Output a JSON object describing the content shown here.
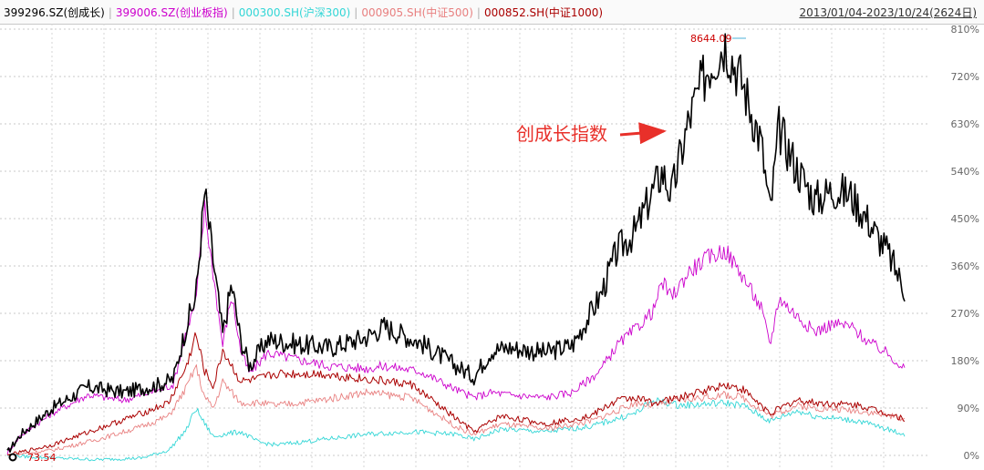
{
  "legend": [
    {
      "label": "399296.SZ(创成长)",
      "color": "#000000"
    },
    {
      "label": "399006.SZ(创业板指)",
      "color": "#cc00cc"
    },
    {
      "label": "000300.SH(沪深300)",
      "color": "#33d6d6"
    },
    {
      "label": "000905.SH(中证500)",
      "color": "#e88080"
    },
    {
      "label": "000852.SH(中证1000)",
      "color": "#aa0000"
    }
  ],
  "date_range": "2013/01/04-2023/10/24(2624日)",
  "chart_data": {
    "type": "line",
    "title": "",
    "xlabel": "",
    "ylabel": "",
    "y_unit": "%",
    "ylim": [
      0,
      810
    ],
    "y_ticks": [
      "810%",
      "720%",
      "630%",
      "540%",
      "450%",
      "360%",
      "270%",
      "180%",
      "90%",
      "0%"
    ],
    "x_range": [
      "2013/01/04",
      "2023/10/24"
    ],
    "grid": true,
    "annotations": [
      {
        "text": "创成长指数",
        "color": "#e8302a",
        "points_to": "399296.SZ(创成长)"
      },
      {
        "text": "8644.09",
        "marks": "max of 399296.SZ(创成长)",
        "color": "#cc0000"
      },
      {
        "text": "73.54",
        "marks": "min of 399296.SZ(创成长)",
        "color": "#cc0000"
      }
    ],
    "series": [
      {
        "name": "399296.SZ(创成长)",
        "color": "#000000",
        "width": 1.6,
        "x": [
          0,
          0.015,
          0.05,
          0.09,
          0.13,
          0.17,
          0.185,
          0.2,
          0.21,
          0.22,
          0.228,
          0.24,
          0.25,
          0.26,
          0.27,
          0.29,
          0.33,
          0.36,
          0.4,
          0.42,
          0.46,
          0.5,
          0.52,
          0.54,
          0.56,
          0.6,
          0.63,
          0.66,
          0.68,
          0.7,
          0.72,
          0.73,
          0.74,
          0.76,
          0.78,
          0.8,
          0.82,
          0.84,
          0.85,
          0.86,
          0.88,
          0.9,
          0.92,
          0.94,
          0.96,
          0.97,
          0.98,
          1.0
        ],
        "y": [
          5,
          40,
          90,
          130,
          120,
          135,
          145,
          250,
          300,
          500,
          390,
          230,
          325,
          220,
          170,
          220,
          210,
          205,
          225,
          245,
          215,
          170,
          150,
          200,
          205,
          195,
          210,
          300,
          390,
          425,
          505,
          540,
          495,
          640,
          735,
          785,
          705,
          595,
          460,
          620,
          545,
          485,
          505,
          495,
          445,
          415,
          390,
          315
        ]
      },
      {
        "name": "399006.SZ(创业板指)",
        "color": "#cc00cc",
        "width": 0.9,
        "x": [
          0,
          0.015,
          0.05,
          0.09,
          0.13,
          0.17,
          0.185,
          0.2,
          0.21,
          0.22,
          0.228,
          0.24,
          0.25,
          0.26,
          0.27,
          0.29,
          0.33,
          0.36,
          0.4,
          0.42,
          0.46,
          0.5,
          0.52,
          0.54,
          0.56,
          0.6,
          0.63,
          0.66,
          0.68,
          0.7,
          0.72,
          0.73,
          0.74,
          0.76,
          0.78,
          0.8,
          0.82,
          0.84,
          0.85,
          0.86,
          0.88,
          0.9,
          0.92,
          0.94,
          0.96,
          0.97,
          0.98,
          1.0
        ],
        "y": [
          5,
          38,
          80,
          115,
          105,
          125,
          135,
          240,
          290,
          470,
          365,
          210,
          305,
          200,
          155,
          195,
          180,
          170,
          165,
          170,
          160,
          125,
          110,
          120,
          115,
          110,
          120,
          160,
          210,
          240,
          275,
          330,
          300,
          350,
          375,
          390,
          340,
          280,
          210,
          300,
          265,
          235,
          250,
          245,
          215,
          205,
          195,
          165
        ]
      },
      {
        "name": "000300.SH(沪深300)",
        "color": "#33d6d6",
        "width": 0.9,
        "x": [
          0,
          0.05,
          0.1,
          0.15,
          0.18,
          0.2,
          0.21,
          0.22,
          0.23,
          0.24,
          0.26,
          0.28,
          0.3,
          0.35,
          0.4,
          0.45,
          0.5,
          0.52,
          0.55,
          0.6,
          0.65,
          0.68,
          0.7,
          0.72,
          0.75,
          0.8,
          0.82,
          0.85,
          0.88,
          0.9,
          0.95,
          1.0
        ],
        "y": [
          0,
          -5,
          -8,
          -5,
          10,
          50,
          90,
          60,
          35,
          40,
          45,
          25,
          20,
          30,
          40,
          45,
          40,
          30,
          50,
          45,
          55,
          70,
          80,
          105,
          95,
          100,
          95,
          65,
          85,
          75,
          65,
          40
        ]
      },
      {
        "name": "000905.SH(中证500)",
        "color": "#e88080",
        "width": 0.9,
        "x": [
          0,
          0.05,
          0.1,
          0.15,
          0.18,
          0.2,
          0.21,
          0.22,
          0.23,
          0.24,
          0.26,
          0.28,
          0.3,
          0.35,
          0.4,
          0.45,
          0.5,
          0.52,
          0.55,
          0.6,
          0.65,
          0.68,
          0.7,
          0.72,
          0.75,
          0.8,
          0.82,
          0.85,
          0.88,
          0.9,
          0.95,
          1.0
        ],
        "y": [
          0,
          10,
          30,
          55,
          75,
          130,
          170,
          110,
          90,
          140,
          100,
          100,
          95,
          105,
          120,
          110,
          55,
          40,
          60,
          50,
          65,
          85,
          100,
          95,
          105,
          115,
          110,
          75,
          95,
          90,
          85,
          70
        ]
      },
      {
        "name": "000852.SH(中证1000)",
        "color": "#aa0000",
        "width": 1.0,
        "x": [
          0,
          0.05,
          0.1,
          0.15,
          0.18,
          0.2,
          0.21,
          0.22,
          0.23,
          0.24,
          0.26,
          0.28,
          0.3,
          0.35,
          0.4,
          0.45,
          0.5,
          0.52,
          0.55,
          0.6,
          0.65,
          0.68,
          0.7,
          0.72,
          0.75,
          0.8,
          0.82,
          0.85,
          0.88,
          0.9,
          0.95,
          1.0
        ],
        "y": [
          0,
          20,
          50,
          80,
          100,
          170,
          230,
          160,
          130,
          200,
          140,
          145,
          155,
          155,
          145,
          135,
          70,
          45,
          75,
          60,
          75,
          105,
          110,
          100,
          110,
          135,
          125,
          80,
          105,
          100,
          95,
          70
        ]
      }
    ]
  }
}
